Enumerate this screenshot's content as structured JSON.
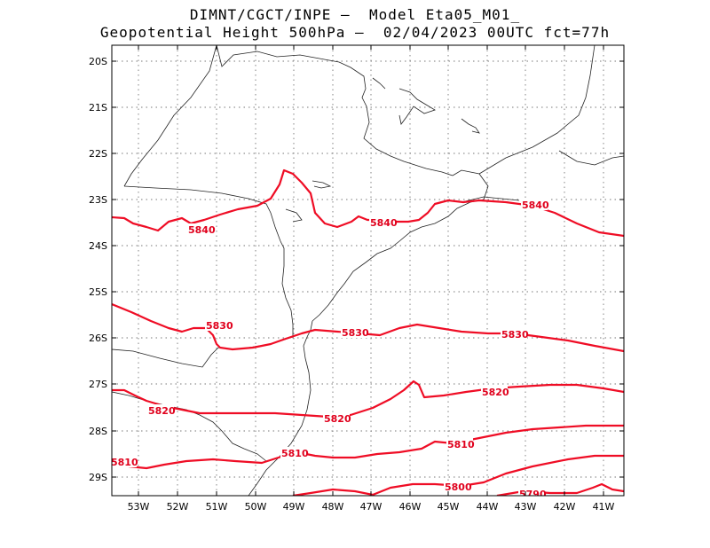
{
  "title": {
    "line1": "DIMNT/CGCT/INPE –  Model Eta05_M01_",
    "line2": "Geopotential Height 500hPa –  02/04/2023 00UTC fct=77h"
  },
  "colors": {
    "contour": "#ef0d25",
    "coast": "#222222",
    "grid": "#777777"
  },
  "map": {
    "lat_labels": [
      "20S",
      "21S",
      "22S",
      "23S",
      "24S",
      "25S",
      "26S",
      "27S",
      "28S",
      "29S"
    ],
    "lon_labels": [
      "53W",
      "52W",
      "51W",
      "50W",
      "49W",
      "48W",
      "47W",
      "46W",
      "45W",
      "44W",
      "43W",
      "42W",
      "41W"
    ]
  },
  "contours": [
    {
      "value": 5840,
      "labels": [
        "5840",
        "5840",
        "5840"
      ]
    },
    {
      "value": 5830,
      "labels": [
        "5830",
        "5830",
        "5830"
      ]
    },
    {
      "value": 5820,
      "labels": [
        "5820",
        "5820",
        "5820"
      ]
    },
    {
      "value": 5810,
      "labels": [
        "5810",
        "5810",
        "5810"
      ]
    },
    {
      "value": 5800,
      "labels": [
        "5800"
      ]
    },
    {
      "value": 5790,
      "labels": [
        "5790"
      ]
    }
  ]
}
